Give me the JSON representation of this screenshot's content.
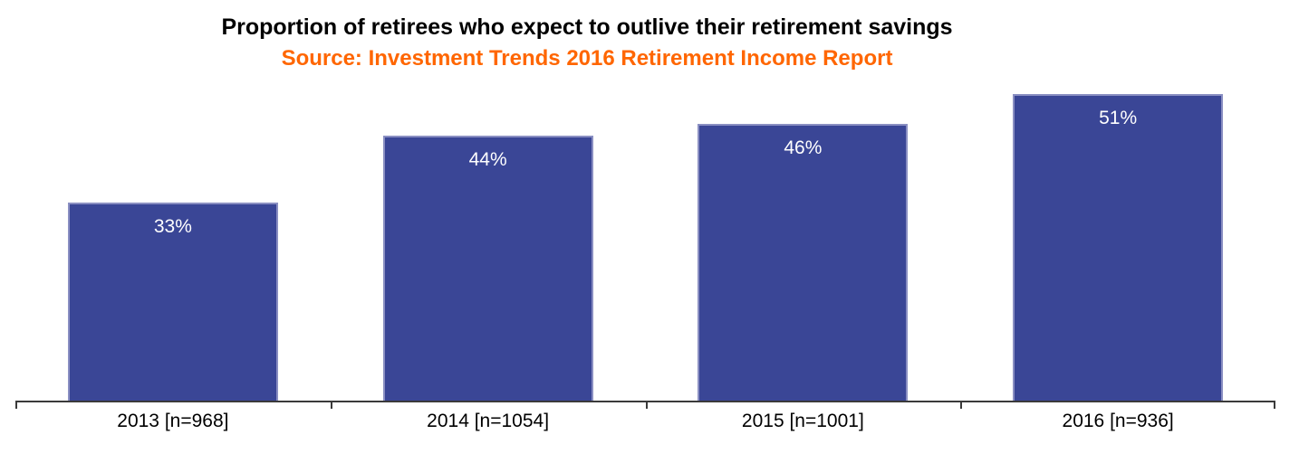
{
  "header": {
    "title": "Proportion of retirees who expect to outlive their retirement savings",
    "subtitle": "Source: Investment Trends 2016 Retirement Income Report"
  },
  "colors": {
    "title": "#000000",
    "subtitle": "#FF6600",
    "bar": "#3A4696",
    "bar_border": "#8A8FC2",
    "bar_label": "#FFFFFF",
    "axis": "#3A3A3A"
  },
  "chart_data": {
    "type": "bar",
    "title": "Proportion of retirees who expect to outlive their retirement savings",
    "subtitle": "Source: Investment Trends 2016 Retirement Income Report",
    "categories": [
      "2013 [n=968]",
      "2014 [n=1054]",
      "2015 [n=1001]",
      "2016 [n=936]"
    ],
    "values": [
      33,
      44,
      46,
      51
    ],
    "data_labels": [
      "33%",
      "44%",
      "46%",
      "51%"
    ],
    "xlabel": "",
    "ylabel": "",
    "ylim": [
      0,
      51
    ],
    "grid": false,
    "legend": false,
    "y_axis_visible": false,
    "data_label_position": "inside-top"
  }
}
